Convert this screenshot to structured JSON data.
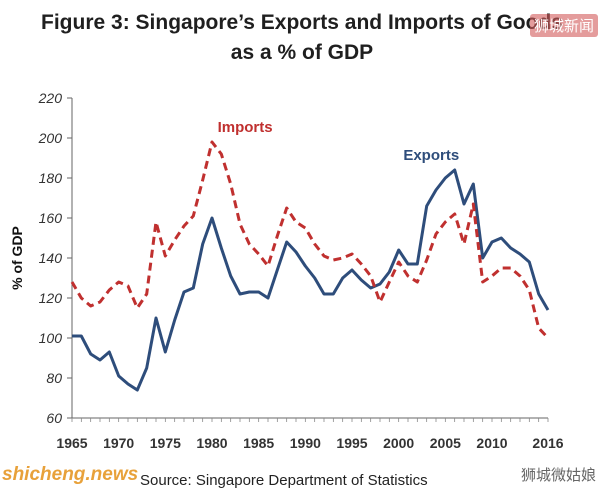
{
  "chart_data": {
    "type": "line",
    "title_line1": "Figure 3: Singapore’s Exports and Imports of Goods",
    "title_line2": "as a % of GDP",
    "ylabel": "% of GDP",
    "xlabel": "",
    "ylim": [
      60,
      220
    ],
    "yticks": [
      60,
      80,
      100,
      120,
      140,
      160,
      180,
      200,
      220
    ],
    "xlim": [
      1965,
      2016
    ],
    "xticks": [
      1965,
      1970,
      1975,
      1980,
      1985,
      1990,
      1995,
      2000,
      2005,
      2010,
      2016
    ],
    "grid": false,
    "x": [
      1965,
      1966,
      1967,
      1968,
      1969,
      1970,
      1971,
      1972,
      1973,
      1974,
      1975,
      1976,
      1977,
      1978,
      1979,
      1980,
      1981,
      1982,
      1983,
      1984,
      1985,
      1986,
      1987,
      1988,
      1989,
      1990,
      1991,
      1992,
      1993,
      1994,
      1995,
      1996,
      1997,
      1998,
      1999,
      2000,
      2001,
      2002,
      2003,
      2004,
      2005,
      2006,
      2007,
      2008,
      2009,
      2010,
      2011,
      2012,
      2013,
      2014,
      2015,
      2016
    ],
    "series": [
      {
        "name": "Exports",
        "color": "#2e4d7b",
        "style": "solid",
        "values": [
          101,
          101,
          92,
          89,
          93,
          81,
          77,
          74,
          85,
          110,
          93,
          109,
          123,
          125,
          147,
          160,
          145,
          131,
          122,
          123,
          123,
          120,
          134,
          148,
          143,
          136,
          130,
          122,
          122,
          130,
          134,
          129,
          125,
          127,
          133,
          144,
          137,
          137,
          166,
          174,
          180,
          184,
          167,
          177,
          140,
          148,
          150,
          145,
          142,
          138,
          122,
          114
        ]
      },
      {
        "name": "Imports",
        "color": "#c0302f",
        "style": "dashed",
        "values": [
          128,
          120,
          116,
          118,
          124,
          128,
          126,
          115,
          122,
          158,
          141,
          149,
          156,
          161,
          179,
          198,
          192,
          177,
          157,
          147,
          142,
          136,
          151,
          165,
          158,
          155,
          147,
          141,
          139,
          140,
          142,
          137,
          131,
          118,
          128,
          138,
          131,
          128,
          139,
          152,
          158,
          162,
          147,
          167,
          128,
          131,
          135,
          135,
          131,
          124,
          105,
          100
        ]
      }
    ],
    "label_positions": "series names printed directly on chart near peaks"
  },
  "source_text": "Source: Singapore Department of Statistics",
  "watermarks": {
    "top_right": "狮城新闻",
    "bottom_left": "shicheng.news",
    "bottom_right": "狮城微姑娘"
  }
}
